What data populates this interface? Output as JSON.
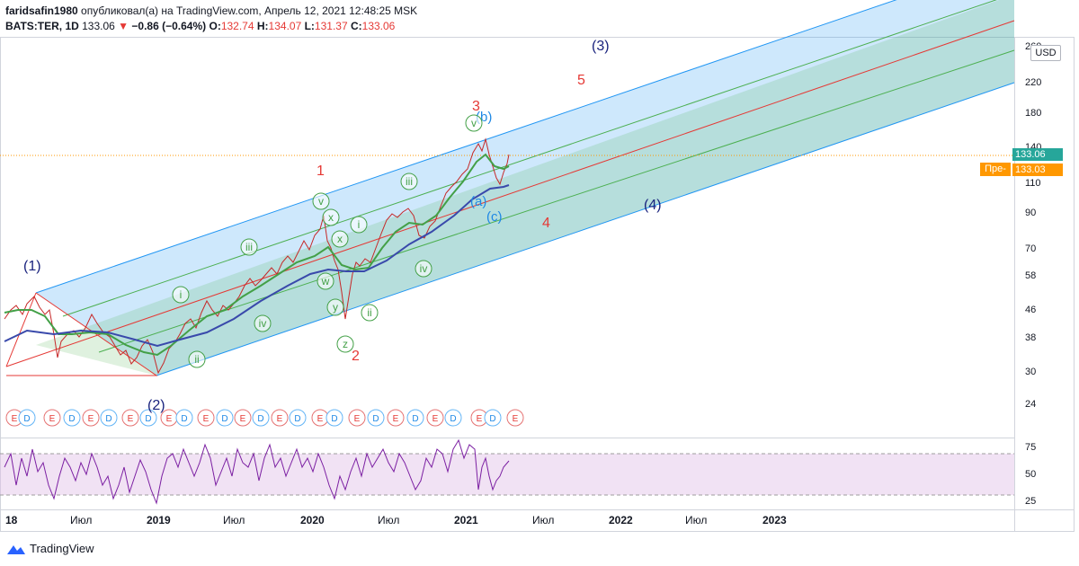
{
  "header": {
    "line1_user": "faridsafin1980",
    "line1_rest": " опубликовал(а) на TradingView.com, Апрель 12, 2021 12:48:25 MSK",
    "symbol": "BATS:TER, 1D",
    "last": "133.06",
    "arrow": "▼",
    "change": "−0.86 (−0.64%)",
    "o_label": "O:",
    "o_val": "132.74",
    "h_label": "H:",
    "h_val": "134.07",
    "l_label": "L:",
    "l_val": "131.37",
    "c_label": "C:",
    "c_val": "133.06"
  },
  "axis": {
    "currency": "USD",
    "price_ticks": [
      "260",
      "220",
      "180",
      "140",
      "110",
      "90",
      "70",
      "58",
      "46",
      "38",
      "30",
      "24"
    ],
    "last_price_tag": "133.06",
    "pre_label": "Пре-",
    "pre_price_tag": "133.03",
    "rsi_ticks": [
      "75",
      "50",
      "25"
    ],
    "time_ticks": [
      "18",
      "Июл",
      "2019",
      "Июл",
      "2020",
      "Июл",
      "2021",
      "Июл",
      "2022",
      "Июл",
      "2023"
    ]
  },
  "waves": {
    "navy": [
      "(1)",
      "(2)",
      "(3)",
      "(4)"
    ],
    "red": [
      "1",
      "2",
      "3",
      "4",
      "5"
    ],
    "green": [
      "i",
      "ii",
      "iii",
      "iv",
      "v",
      "w",
      "x",
      "y",
      "z"
    ],
    "blue": [
      "(a)",
      "(b)",
      "(c)"
    ]
  },
  "events": {
    "e": "E",
    "d": "D"
  },
  "footer": {
    "brand": "TradingView"
  },
  "colors": {
    "channel_blue": "#2196f3",
    "channel_green": "#4caf50",
    "median_red": "#e53935",
    "ma_fast": "#43a047",
    "ma_slow": "#3949ab",
    "rsi": "#7b1fa2",
    "navy_text": "#1a237e"
  }
}
